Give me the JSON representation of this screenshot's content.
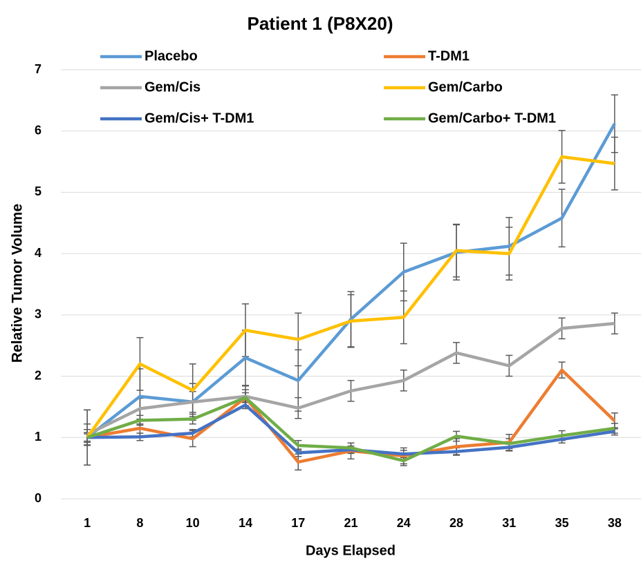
{
  "chart_data": {
    "type": "line",
    "title": "Patient 1 (P8X20)",
    "x_label": "Days Elapsed",
    "y_label": "Relative Tumor Volume",
    "categories": [
      "1",
      "8",
      "10",
      "14",
      "17",
      "21",
      "24",
      "28",
      "31",
      "35",
      "38"
    ],
    "ylim": [
      0,
      7
    ],
    "yticks": [
      0,
      1,
      2,
      3,
      4,
      5,
      6,
      7
    ],
    "grid": true,
    "legend": "top",
    "series": [
      {
        "name": "Placebo",
        "color": "#5b9bd5",
        "values": [
          1.0,
          1.67,
          1.58,
          2.3,
          1.93,
          2.93,
          3.7,
          4.02,
          4.12,
          4.58,
          6.12
        ],
        "errors": [
          0.45,
          0.45,
          0.3,
          0.45,
          0.5,
          0.45,
          0.47,
          0.45,
          0.47,
          0.47,
          0.47
        ]
      },
      {
        "name": "T-DM1",
        "color": "#ed7d31",
        "values": [
          1.0,
          1.15,
          0.98,
          1.65,
          0.6,
          0.78,
          0.7,
          0.85,
          0.92,
          2.1,
          1.27
        ],
        "errors": [
          0.13,
          0.13,
          0.13,
          0.13,
          0.13,
          0.13,
          0.13,
          0.13,
          0.13,
          0.13,
          0.13
        ]
      },
      {
        "name": "Gem/Cis",
        "color": "#a5a5a5",
        "values": [
          1.05,
          1.47,
          1.58,
          1.67,
          1.48,
          1.76,
          1.93,
          2.38,
          2.17,
          2.78,
          2.86
        ],
        "errors": [
          0.17,
          0.17,
          0.17,
          0.17,
          0.17,
          0.17,
          0.17,
          0.17,
          0.17,
          0.17,
          0.17
        ]
      },
      {
        "name": "Gem/Carbo",
        "color": "#ffc000",
        "values": [
          1.0,
          2.2,
          1.77,
          2.75,
          2.6,
          2.9,
          2.96,
          4.05,
          4.0,
          5.58,
          5.47
        ],
        "errors": [
          0.45,
          0.43,
          0.43,
          0.43,
          0.43,
          0.43,
          0.43,
          0.43,
          0.43,
          0.43,
          0.43
        ]
      },
      {
        "name": "Gem/Cis+ T-DM1",
        "color": "#4472c4",
        "values": [
          1.0,
          1.01,
          1.07,
          1.53,
          0.75,
          0.8,
          0.73,
          0.77,
          0.84,
          0.97,
          1.1
        ],
        "errors": [
          0.06,
          0.06,
          0.06,
          0.06,
          0.06,
          0.06,
          0.06,
          0.06,
          0.06,
          0.06,
          0.06
        ]
      },
      {
        "name": "Gem/Carbo+ T-DM1",
        "color": "#70ad47",
        "values": [
          1.0,
          1.28,
          1.3,
          1.65,
          0.87,
          0.83,
          0.62,
          1.02,
          0.9,
          1.03,
          1.15
        ],
        "errors": [
          0.08,
          0.08,
          0.08,
          0.08,
          0.08,
          0.08,
          0.08,
          0.08,
          0.08,
          0.08,
          0.08
        ]
      }
    ]
  }
}
